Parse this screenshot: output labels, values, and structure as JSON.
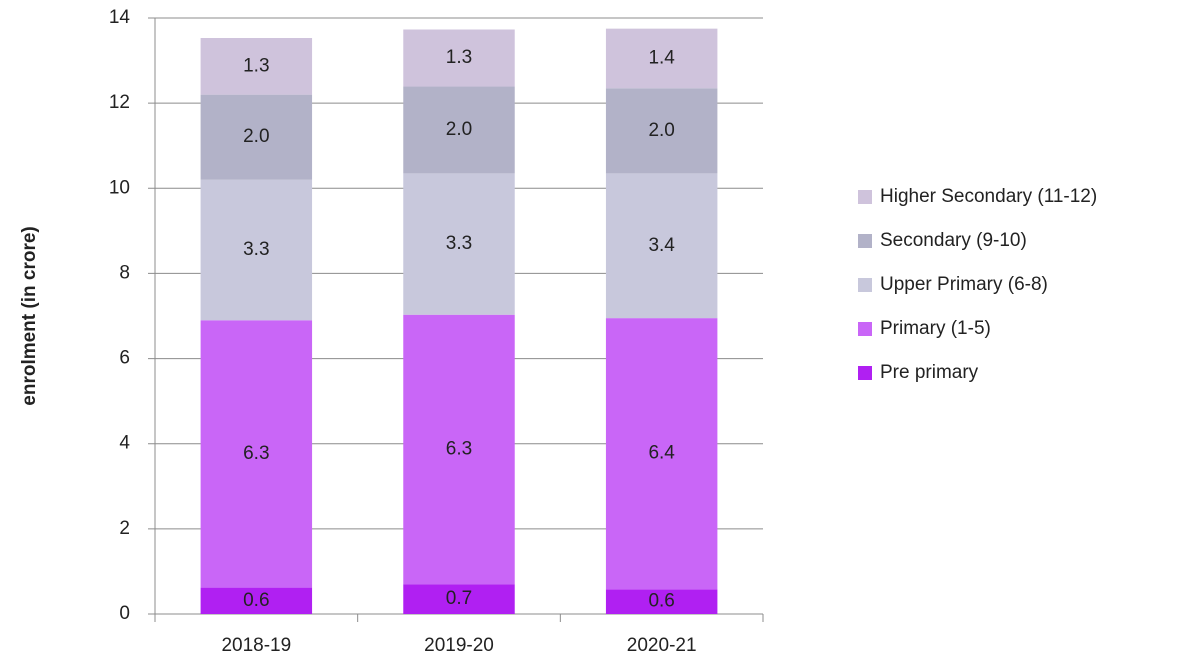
{
  "chart_data": {
    "type": "stacked_bar",
    "y_label": "enrolment (in crore)",
    "categories": [
      "2018-19",
      "2019-20",
      "2020-21"
    ],
    "series": [
      {
        "name": "Pre primary",
        "color": "#b020f2",
        "values": [
          0.62,
          0.7,
          0.58
        ],
        "value_labels": [
          "0.6",
          "0.7",
          "0.6"
        ]
      },
      {
        "name": "Primary (1-5)",
        "color": "#c966f7",
        "values": [
          6.28,
          6.33,
          6.37
        ],
        "value_labels": [
          "6.3",
          "6.3",
          "6.4"
        ]
      },
      {
        "name": "Upper Primary (6-8)",
        "color": "#c8c8dc",
        "values": [
          3.3,
          3.32,
          3.4
        ],
        "value_labels": [
          "3.3",
          "3.3",
          "3.4"
        ]
      },
      {
        "name": "Secondary (9-10)",
        "color": "#b2b2c8",
        "values": [
          2.0,
          2.04,
          2.0
        ],
        "value_labels": [
          "2.0",
          "2.0",
          "2.0"
        ]
      },
      {
        "name": "Higher Secondary (11-12)",
        "color": "#cfc3dc",
        "values": [
          1.33,
          1.34,
          1.4
        ],
        "value_labels": [
          "1.3",
          "1.3",
          "1.4"
        ]
      }
    ],
    "ylim": [
      0,
      14
    ],
    "yticks": [
      0,
      2,
      4,
      6,
      8,
      10,
      12,
      14
    ],
    "grid": true,
    "legend": "right"
  }
}
